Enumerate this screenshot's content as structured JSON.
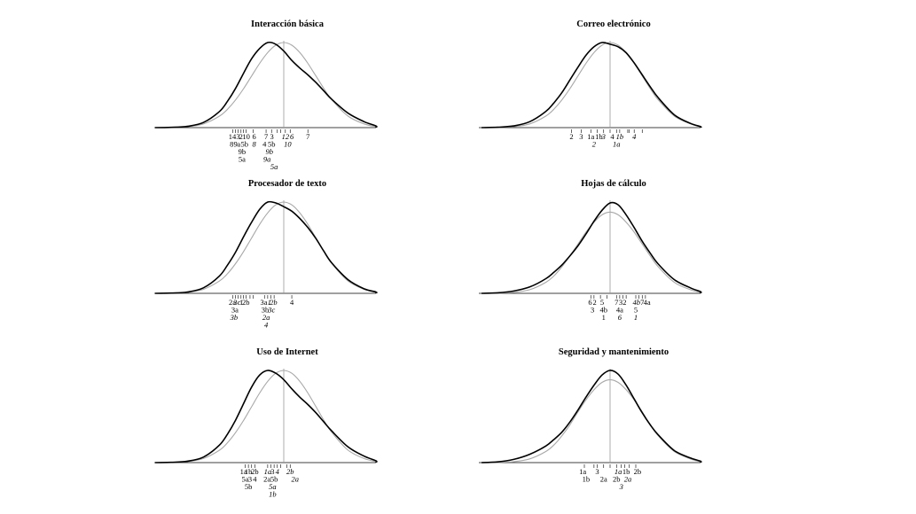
{
  "chart_data": [
    {
      "type": "line",
      "title": "Interacción básica",
      "x": [
        -4.0,
        -3.5,
        -3.0,
        -2.5,
        -2.0,
        -1.75,
        -1.5,
        -1.25,
        -1.0,
        -0.75,
        -0.5,
        -0.25,
        0.0,
        0.25,
        0.5,
        0.75,
        1.0,
        1.25,
        1.5,
        2.0,
        2.5,
        3.0,
        3.5,
        4.0
      ],
      "series": [
        {
          "values": [
            0.0,
            0.003,
            0.015,
            0.06,
            0.19,
            0.31,
            0.46,
            0.64,
            0.81,
            0.93,
            1.0,
            0.98,
            0.9,
            0.79,
            0.7,
            0.62,
            0.53,
            0.43,
            0.33,
            0.17,
            0.07,
            0.02,
            0.004,
            0.0
          ]
        },
        {
          "values": [
            0.0,
            0.002,
            0.011,
            0.044,
            0.135,
            0.216,
            0.325,
            0.458,
            0.607,
            0.755,
            0.882,
            0.969,
            1.0,
            0.969,
            0.882,
            0.755,
            0.607,
            0.458,
            0.325,
            0.135,
            0.044,
            0.011,
            0.002,
            0.0
          ]
        }
      ],
      "ticks": [
        -1.58,
        -1.5,
        -1.42,
        -1.33,
        -1.25,
        -1.17,
        -0.95,
        -0.55,
        -0.38,
        -0.2,
        -0.1,
        0.05,
        0.2,
        0.75
      ],
      "tick_labels": [
        [
          {
            "text": "14",
            "x": -1.6,
            "row": 0
          },
          {
            "text": "3",
            "x": -1.42,
            "row": 0
          },
          {
            "text": "2",
            "x": -1.33,
            "row": 0
          },
          {
            "text": "10",
            "x": -1.17,
            "row": 0
          },
          {
            "text": "6",
            "x": -0.92,
            "row": 0
          },
          {
            "text": "7",
            "x": -0.55,
            "row": 0
          },
          {
            "text": "3",
            "x": -0.37,
            "row": 0
          },
          {
            "text": "12",
            "x": 0.05,
            "row": 0,
            "italic": true
          },
          {
            "text": "6",
            "x": 0.25,
            "row": 0,
            "italic": true
          },
          {
            "text": "7",
            "x": 0.75,
            "row": 0
          },
          {
            "text": "8",
            "x": -1.62,
            "row": 1
          },
          {
            "text": "9",
            "x": -1.5,
            "row": 1
          },
          {
            "text": "a",
            "x": -1.4,
            "row": 1
          },
          {
            "text": "5b",
            "x": -1.22,
            "row": 1
          },
          {
            "text": "8",
            "x": -0.92,
            "row": 1,
            "italic": true
          },
          {
            "text": "4",
            "x": -0.6,
            "row": 1
          },
          {
            "text": "5b",
            "x": -0.38,
            "row": 1
          },
          {
            "text": "10",
            "x": 0.12,
            "row": 1,
            "italic": true
          },
          {
            "text": "9b",
            "x": -1.3,
            "row": 2
          },
          {
            "text": "9b",
            "x": -0.45,
            "row": 2,
            "italic": true
          },
          {
            "text": "5a",
            "x": -1.3,
            "row": 3
          },
          {
            "text": "9a",
            "x": -0.52,
            "row": 3,
            "italic": true
          },
          {
            "text": "5a",
            "x": -0.3,
            "row": 4,
            "italic": true
          }
        ]
      ]
    },
    {
      "type": "line",
      "title": "Correo electrónico",
      "x": [
        -4.0,
        -3.5,
        -3.0,
        -2.5,
        -2.0,
        -1.75,
        -1.5,
        -1.25,
        -1.0,
        -0.75,
        -0.5,
        -0.25,
        0.0,
        0.25,
        0.5,
        0.75,
        1.0,
        1.25,
        1.5,
        2.0,
        2.5,
        3.0,
        3.5,
        4.0
      ],
      "series": [
        {
          "values": [
            0.0,
            0.004,
            0.02,
            0.07,
            0.19,
            0.29,
            0.41,
            0.56,
            0.71,
            0.85,
            0.95,
            1.0,
            0.98,
            0.95,
            0.88,
            0.76,
            0.62,
            0.48,
            0.35,
            0.15,
            0.05,
            0.012,
            0.002,
            0.0
          ]
        },
        {
          "values": [
            0.0,
            0.002,
            0.011,
            0.044,
            0.135,
            0.216,
            0.325,
            0.458,
            0.607,
            0.755,
            0.882,
            0.969,
            1.0,
            0.969,
            0.882,
            0.755,
            0.607,
            0.458,
            0.325,
            0.135,
            0.044,
            0.011,
            0.002,
            0.0
          ]
        }
      ],
      "ticks": [
        -1.2,
        -0.9,
        -0.6,
        -0.4,
        -0.2,
        0.0,
        0.2,
        0.3,
        0.55,
        0.6,
        0.75,
        1.0
      ],
      "tick_labels": [
        [
          {
            "text": "2",
            "x": -1.2,
            "row": 0
          },
          {
            "text": "3",
            "x": -0.9,
            "row": 0
          },
          {
            "text": "1a",
            "x": -0.6,
            "row": 0
          },
          {
            "text": "1b",
            "x": -0.35,
            "row": 0
          },
          {
            "text": "3",
            "x": -0.2,
            "row": 0,
            "italic": true
          },
          {
            "text": "4",
            "x": 0.07,
            "row": 0
          },
          {
            "text": "1b",
            "x": 0.3,
            "row": 0,
            "italic": true
          },
          {
            "text": "4",
            "x": 0.75,
            "row": 0,
            "italic": true
          },
          {
            "text": "2",
            "x": -0.5,
            "row": 1,
            "italic": true
          },
          {
            "text": "1a",
            "x": 0.2,
            "row": 1,
            "italic": true
          }
        ]
      ]
    },
    {
      "type": "line",
      "title": "Procesador de texto",
      "x": [
        -4.0,
        -3.5,
        -3.0,
        -2.5,
        -2.0,
        -1.75,
        -1.5,
        -1.25,
        -1.0,
        -0.75,
        -0.5,
        -0.25,
        0.0,
        0.25,
        0.5,
        0.75,
        1.0,
        1.25,
        1.5,
        2.0,
        2.5,
        3.0,
        3.5,
        4.0
      ],
      "series": [
        {
          "values": [
            0.0,
            0.003,
            0.015,
            0.06,
            0.19,
            0.31,
            0.45,
            0.62,
            0.78,
            0.92,
            1.0,
            0.99,
            0.95,
            0.9,
            0.82,
            0.72,
            0.6,
            0.46,
            0.33,
            0.15,
            0.05,
            0.015,
            0.003,
            0.0
          ]
        },
        {
          "values": [
            0.0,
            0.002,
            0.011,
            0.044,
            0.135,
            0.216,
            0.325,
            0.458,
            0.607,
            0.755,
            0.882,
            0.969,
            1.0,
            0.969,
            0.882,
            0.755,
            0.607,
            0.458,
            0.325,
            0.135,
            0.044,
            0.011,
            0.002,
            0.0
          ]
        }
      ],
      "ticks": [
        -1.58,
        -1.5,
        -1.42,
        -1.33,
        -1.25,
        -1.17,
        -1.05,
        -0.95,
        -0.6,
        -0.5,
        -0.4,
        -0.3,
        0.25
      ],
      "tick_labels": [
        [
          {
            "text": "2a",
            "x": -1.6,
            "row": 0
          },
          {
            "text": "3c",
            "x": -1.45,
            "row": 0
          },
          {
            "text": "1",
            "x": -1.32,
            "row": 0
          },
          {
            "text": "2b",
            "x": -1.18,
            "row": 0
          },
          {
            "text": "3a",
            "x": -0.62,
            "row": 0
          },
          {
            "text": "1",
            "x": -0.45,
            "row": 0,
            "italic": true
          },
          {
            "text": "2b",
            "x": -0.32,
            "row": 0,
            "italic": true
          },
          {
            "text": "4",
            "x": 0.25,
            "row": 0
          },
          {
            "text": "3a",
            "x": -1.52,
            "row": 1
          },
          {
            "text": "3b",
            "x": -0.58,
            "row": 1
          },
          {
            "text": "3c",
            "x": -0.38,
            "row": 1,
            "italic": true
          },
          {
            "text": "3b",
            "x": -1.55,
            "row": 2,
            "italic": true
          },
          {
            "text": "2a",
            "x": -0.55,
            "row": 2,
            "italic": true
          },
          {
            "text": "4",
            "x": -0.55,
            "row": 3,
            "italic": true
          }
        ]
      ]
    },
    {
      "type": "line",
      "title": "Hojas de cálculo",
      "x": [
        -4.0,
        -3.5,
        -3.0,
        -2.5,
        -2.0,
        -1.75,
        -1.5,
        -1.25,
        -1.0,
        -0.75,
        -0.5,
        -0.25,
        0.0,
        0.25,
        0.5,
        0.75,
        1.0,
        1.25,
        1.5,
        2.0,
        2.5,
        3.0,
        3.5,
        4.0
      ],
      "series": [
        {
          "values": [
            0.0,
            0.006,
            0.025,
            0.07,
            0.16,
            0.23,
            0.31,
            0.41,
            0.52,
            0.65,
            0.79,
            0.91,
            0.99,
            0.97,
            0.86,
            0.72,
            0.57,
            0.44,
            0.32,
            0.15,
            0.06,
            0.018,
            0.004,
            0.0
          ]
        },
        {
          "values": [
            0.0,
            0.002,
            0.01,
            0.04,
            0.12,
            0.19,
            0.29,
            0.41,
            0.54,
            0.67,
            0.78,
            0.86,
            0.89,
            0.86,
            0.78,
            0.67,
            0.54,
            0.41,
            0.29,
            0.12,
            0.04,
            0.01,
            0.002,
            0.0
          ]
        }
      ],
      "ticks": [
        -0.6,
        -0.5,
        -0.3,
        -0.1,
        0.2,
        0.3,
        0.4,
        0.5,
        0.8,
        0.9,
        1.0,
        1.1
      ],
      "tick_labels": [
        [
          {
            "text": "6",
            "x": -0.62,
            "row": 0
          },
          {
            "text": "2",
            "x": -0.48,
            "row": 0
          },
          {
            "text": "5",
            "x": -0.25,
            "row": 0
          },
          {
            "text": "7",
            "x": 0.2,
            "row": 0
          },
          {
            "text": "3",
            "x": 0.33,
            "row": 0
          },
          {
            "text": "2",
            "x": 0.45,
            "row": 0
          },
          {
            "text": "4b",
            "x": 0.82,
            "row": 0,
            "italic": true
          },
          {
            "text": "7",
            "x": 1.0,
            "row": 0
          },
          {
            "text": "4a",
            "x": 1.15,
            "row": 0
          },
          {
            "text": "3",
            "x": -0.55,
            "row": 1
          },
          {
            "text": "4b",
            "x": -0.2,
            "row": 1
          },
          {
            "text": "4a",
            "x": 0.3,
            "row": 1
          },
          {
            "text": "5",
            "x": 0.8,
            "row": 1
          },
          {
            "text": "1",
            "x": -0.2,
            "row": 2
          },
          {
            "text": "6",
            "x": 0.3,
            "row": 2,
            "italic": true
          },
          {
            "text": "1",
            "x": 0.8,
            "row": 2,
            "italic": true
          }
        ]
      ]
    },
    {
      "type": "line",
      "title": "Uso de Internet",
      "x": [
        -4.0,
        -3.5,
        -3.0,
        -2.5,
        -2.0,
        -1.75,
        -1.5,
        -1.25,
        -1.0,
        -0.75,
        -0.5,
        -0.25,
        0.0,
        0.25,
        0.5,
        0.75,
        1.0,
        1.25,
        1.5,
        2.0,
        2.5,
        3.0,
        3.5,
        4.0
      ],
      "series": [
        {
          "values": [
            0.0,
            0.003,
            0.015,
            0.06,
            0.19,
            0.31,
            0.46,
            0.64,
            0.82,
            0.95,
            1.0,
            0.97,
            0.9,
            0.8,
            0.71,
            0.63,
            0.54,
            0.44,
            0.34,
            0.17,
            0.07,
            0.02,
            0.004,
            0.0
          ]
        },
        {
          "values": [
            0.0,
            0.002,
            0.011,
            0.044,
            0.135,
            0.216,
            0.325,
            0.458,
            0.607,
            0.755,
            0.882,
            0.969,
            1.0,
            0.969,
            0.882,
            0.755,
            0.607,
            0.458,
            0.325,
            0.135,
            0.044,
            0.011,
            0.002,
            0.0
          ]
        }
      ],
      "ticks": [
        -1.2,
        -1.1,
        -1.0,
        -0.9,
        -0.5,
        -0.4,
        -0.3,
        -0.2,
        -0.1,
        0.1,
        0.2
      ],
      "tick_labels": [
        [
          {
            "text": "1a",
            "x": -1.25,
            "row": 0
          },
          {
            "text": "1b",
            "x": -1.1,
            "row": 0
          },
          {
            "text": "2b",
            "x": -0.9,
            "row": 0
          },
          {
            "text": "1a",
            "x": -0.5,
            "row": 0,
            "italic": true
          },
          {
            "text": "3",
            "x": -0.35,
            "row": 0
          },
          {
            "text": "4",
            "x": -0.2,
            "row": 0,
            "italic": true
          },
          {
            "text": "2b",
            "x": 0.2,
            "row": 0,
            "italic": true
          },
          {
            "text": "5a",
            "x": -1.2,
            "row": 1
          },
          {
            "text": "3",
            "x": -1.05,
            "row": 1
          },
          {
            "text": "4",
            "x": -0.9,
            "row": 1
          },
          {
            "text": "2a",
            "x": -0.52,
            "row": 1
          },
          {
            "text": "5b",
            "x": -0.3,
            "row": 1
          },
          {
            "text": "2a",
            "x": 0.35,
            "row": 1,
            "italic": true
          },
          {
            "text": "5b",
            "x": -1.1,
            "row": 2
          },
          {
            "text": "5a",
            "x": -0.35,
            "row": 2,
            "italic": true
          },
          {
            "text": "1b",
            "x": -0.35,
            "row": 3,
            "italic": true
          }
        ]
      ]
    },
    {
      "type": "line",
      "title": "Seguridad y mantenimiento",
      "x": [
        -4.0,
        -3.5,
        -3.0,
        -2.5,
        -2.0,
        -1.75,
        -1.5,
        -1.25,
        -1.0,
        -0.75,
        -0.5,
        -0.25,
        0.0,
        0.25,
        0.5,
        0.75,
        1.0,
        1.25,
        1.5,
        2.0,
        2.5,
        3.0,
        3.5,
        4.0
      ],
      "series": [
        {
          "values": [
            0.0,
            0.008,
            0.035,
            0.09,
            0.18,
            0.25,
            0.33,
            0.44,
            0.57,
            0.71,
            0.84,
            0.95,
            1.0,
            0.96,
            0.84,
            0.69,
            0.54,
            0.41,
            0.3,
            0.13,
            0.05,
            0.015,
            0.003,
            0.0
          ]
        },
        {
          "values": [
            0.0,
            0.002,
            0.01,
            0.04,
            0.12,
            0.19,
            0.29,
            0.41,
            0.55,
            0.68,
            0.79,
            0.87,
            0.9,
            0.87,
            0.79,
            0.68,
            0.55,
            0.41,
            0.29,
            0.12,
            0.04,
            0.01,
            0.002,
            0.0
          ]
        }
      ],
      "ticks": [
        -0.8,
        -0.5,
        -0.4,
        -0.2,
        0.0,
        0.2,
        0.35,
        0.45,
        0.6,
        0.8
      ],
      "tick_labels": [
        [
          {
            "text": "1a",
            "x": -0.85,
            "row": 0
          },
          {
            "text": "3",
            "x": -0.4,
            "row": 0
          },
          {
            "text": "1a",
            "x": 0.25,
            "row": 0,
            "italic": true
          },
          {
            "text": "1b",
            "x": 0.5,
            "row": 0
          },
          {
            "text": "2b",
            "x": 0.85,
            "row": 0
          },
          {
            "text": "1b",
            "x": -0.75,
            "row": 1
          },
          {
            "text": "2a",
            "x": -0.2,
            "row": 1
          },
          {
            "text": "2b",
            "x": 0.2,
            "row": 1
          },
          {
            "text": "2a",
            "x": 0.55,
            "row": 1,
            "italic": true
          },
          {
            "text": "3",
            "x": 0.35,
            "row": 2,
            "italic": true
          }
        ]
      ]
    }
  ]
}
